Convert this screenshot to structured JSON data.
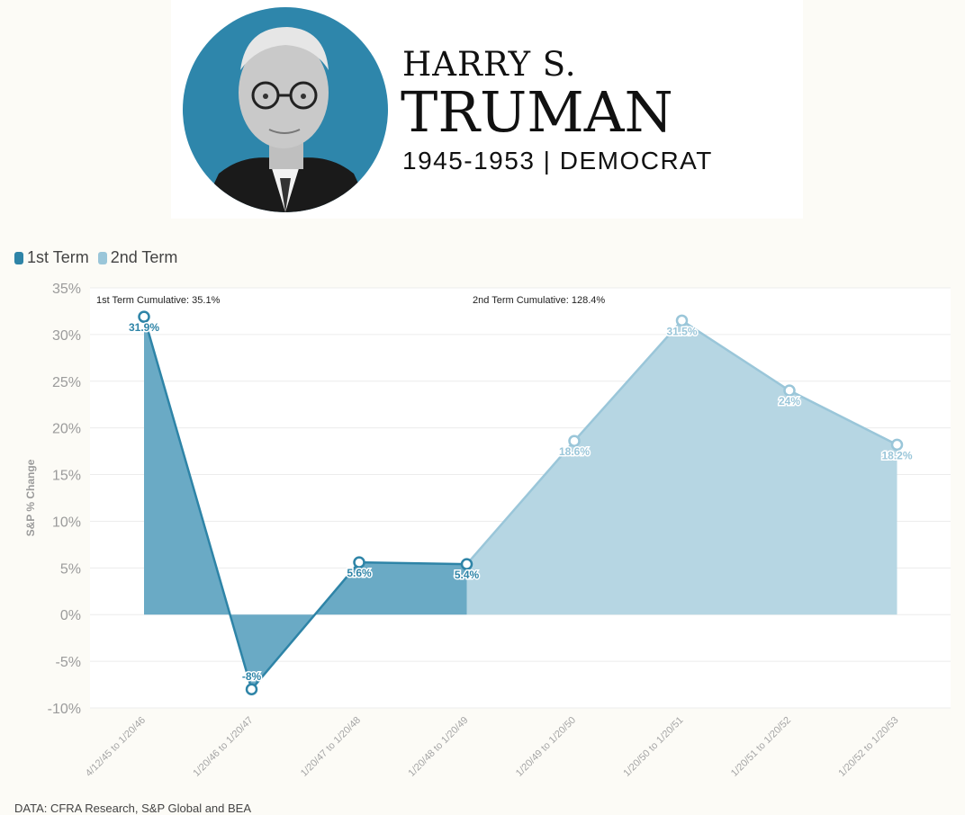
{
  "header": {
    "name_line1": "HARRY S.",
    "name_line2": "TRUMAN",
    "subtitle": "1945-1953 | DEMOCRAT"
  },
  "legend": [
    {
      "label": "1st Term",
      "color": "#2e84a7"
    },
    {
      "label": "2nd Term",
      "color": "#9ac6d9"
    }
  ],
  "source": "DATA: CFRA Research, S&P Global and BEA",
  "colors": {
    "term1_line": "#2e84a7",
    "term1_fill": "#6aaac5",
    "term2_line": "#9ac6d9",
    "term2_fill": "#b6d6e3",
    "portrait_bg": "#2e86ab"
  },
  "chart_data": {
    "type": "area",
    "ylabel": "S&P % Change",
    "ylim": [
      -10,
      35
    ],
    "yticks": [
      35,
      30,
      25,
      20,
      15,
      10,
      5,
      0,
      -5,
      -10
    ],
    "ytick_labels": [
      "35%",
      "30%",
      "25%",
      "20%",
      "15%",
      "10%",
      "5%",
      "0%",
      "-5%",
      "-10%"
    ],
    "categories": [
      "4/12/45 to 1/20/46",
      "1/20/46 to 1/20/47",
      "1/20/47 to 1/20/48",
      "1/20/48 to 1/20/49",
      "1/20/49 to 1/20/50",
      "1/20/50 to 1/20/51",
      "1/20/51 to 1/20/52",
      "1/20/52 to 1/20/53"
    ],
    "series": [
      {
        "name": "1st Term",
        "values": [
          31.9,
          -8,
          5.6,
          5.4,
          null,
          null,
          null,
          null
        ],
        "labels": [
          "31.9%",
          "-8%",
          "5.6%",
          "5.4%"
        ]
      },
      {
        "name": "2nd Term",
        "values": [
          null,
          null,
          null,
          5.4,
          18.6,
          31.5,
          24,
          18.2
        ],
        "labels": [
          "",
          "",
          "",
          "",
          "18.6%",
          "31.5%",
          "24%",
          "18.2%"
        ]
      }
    ],
    "annotations": [
      "1st Term Cumulative: 35.1%",
      "2nd Term Cumulative: 128.4%"
    ],
    "grid": true,
    "legend_position": "top-left"
  }
}
